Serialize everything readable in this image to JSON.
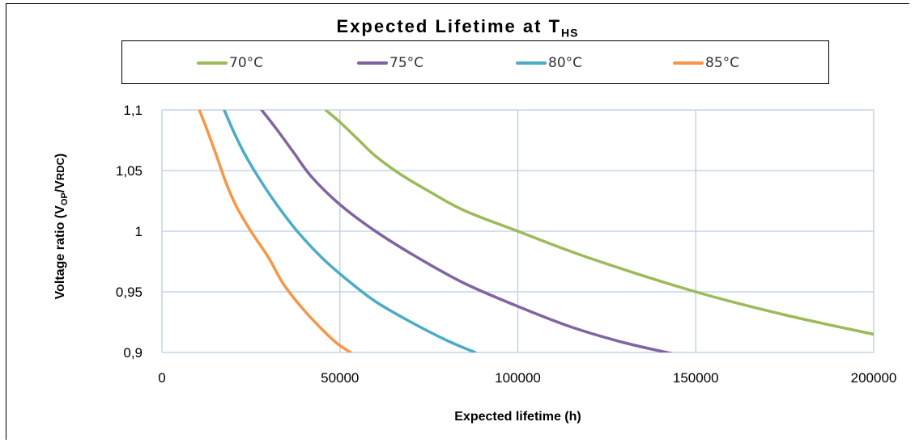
{
  "chart_data": {
    "type": "line",
    "title": "Expected Lifetime at T",
    "title_subscript": "HS",
    "xlabel": "Expected lifetime (h)",
    "ylabel_parts": {
      "prefix": "Voltage ratio (V",
      "op_sub": "OP",
      "mid": "/V",
      "rdc": "RDC",
      "suffix": ")"
    },
    "xlim": [
      0,
      200000
    ],
    "ylim": [
      0.9,
      1.1
    ],
    "x_ticks": [
      "0",
      "50000",
      "100000",
      "150000",
      "200000"
    ],
    "y_ticks": [
      "0,9",
      "0,95",
      "1",
      "1,05",
      "1,1"
    ],
    "grid": true,
    "legend_placement": "top",
    "series": [
      {
        "name": "70°C",
        "color": "#9BBB59",
        "points": [
          [
            46000,
            1.1
          ],
          [
            50000,
            1.09
          ],
          [
            55000,
            1.076
          ],
          [
            60000,
            1.062
          ],
          [
            67000,
            1.047
          ],
          [
            75000,
            1.033
          ],
          [
            85000,
            1.017
          ],
          [
            100000,
            1.0
          ],
          [
            120000,
            0.978
          ],
          [
            150000,
            0.95
          ],
          [
            175000,
            0.931
          ],
          [
            200000,
            0.915
          ]
        ]
      },
      {
        "name": "75°C",
        "color": "#8064A2",
        "points": [
          [
            28000,
            1.1
          ],
          [
            32000,
            1.085
          ],
          [
            37000,
            1.065
          ],
          [
            42000,
            1.045
          ],
          [
            50000,
            1.022
          ],
          [
            60000,
            1.0
          ],
          [
            72000,
            0.978
          ],
          [
            85000,
            0.957
          ],
          [
            100000,
            0.938
          ],
          [
            115000,
            0.921
          ],
          [
            130000,
            0.908
          ],
          [
            145000,
            0.898
          ]
        ]
      },
      {
        "name": "80°C",
        "color": "#4BACC6",
        "points": [
          [
            17500,
            1.1
          ],
          [
            20000,
            1.083
          ],
          [
            23000,
            1.065
          ],
          [
            27000,
            1.045
          ],
          [
            32000,
            1.023
          ],
          [
            38000,
            1.0
          ],
          [
            45000,
            0.978
          ],
          [
            52000,
            0.96
          ],
          [
            60000,
            0.942
          ],
          [
            70000,
            0.925
          ],
          [
            80000,
            0.91
          ],
          [
            88000,
            0.9
          ]
        ]
      },
      {
        "name": "85°C",
        "color": "#F79646",
        "points": [
          [
            10500,
            1.1
          ],
          [
            12500,
            1.085
          ],
          [
            15000,
            1.065
          ],
          [
            18000,
            1.04
          ],
          [
            21000,
            1.02
          ],
          [
            25000,
            1.0
          ],
          [
            30000,
            0.978
          ],
          [
            34000,
            0.957
          ],
          [
            39000,
            0.938
          ],
          [
            44000,
            0.922
          ],
          [
            49000,
            0.908
          ],
          [
            53000,
            0.9
          ]
        ]
      }
    ]
  }
}
